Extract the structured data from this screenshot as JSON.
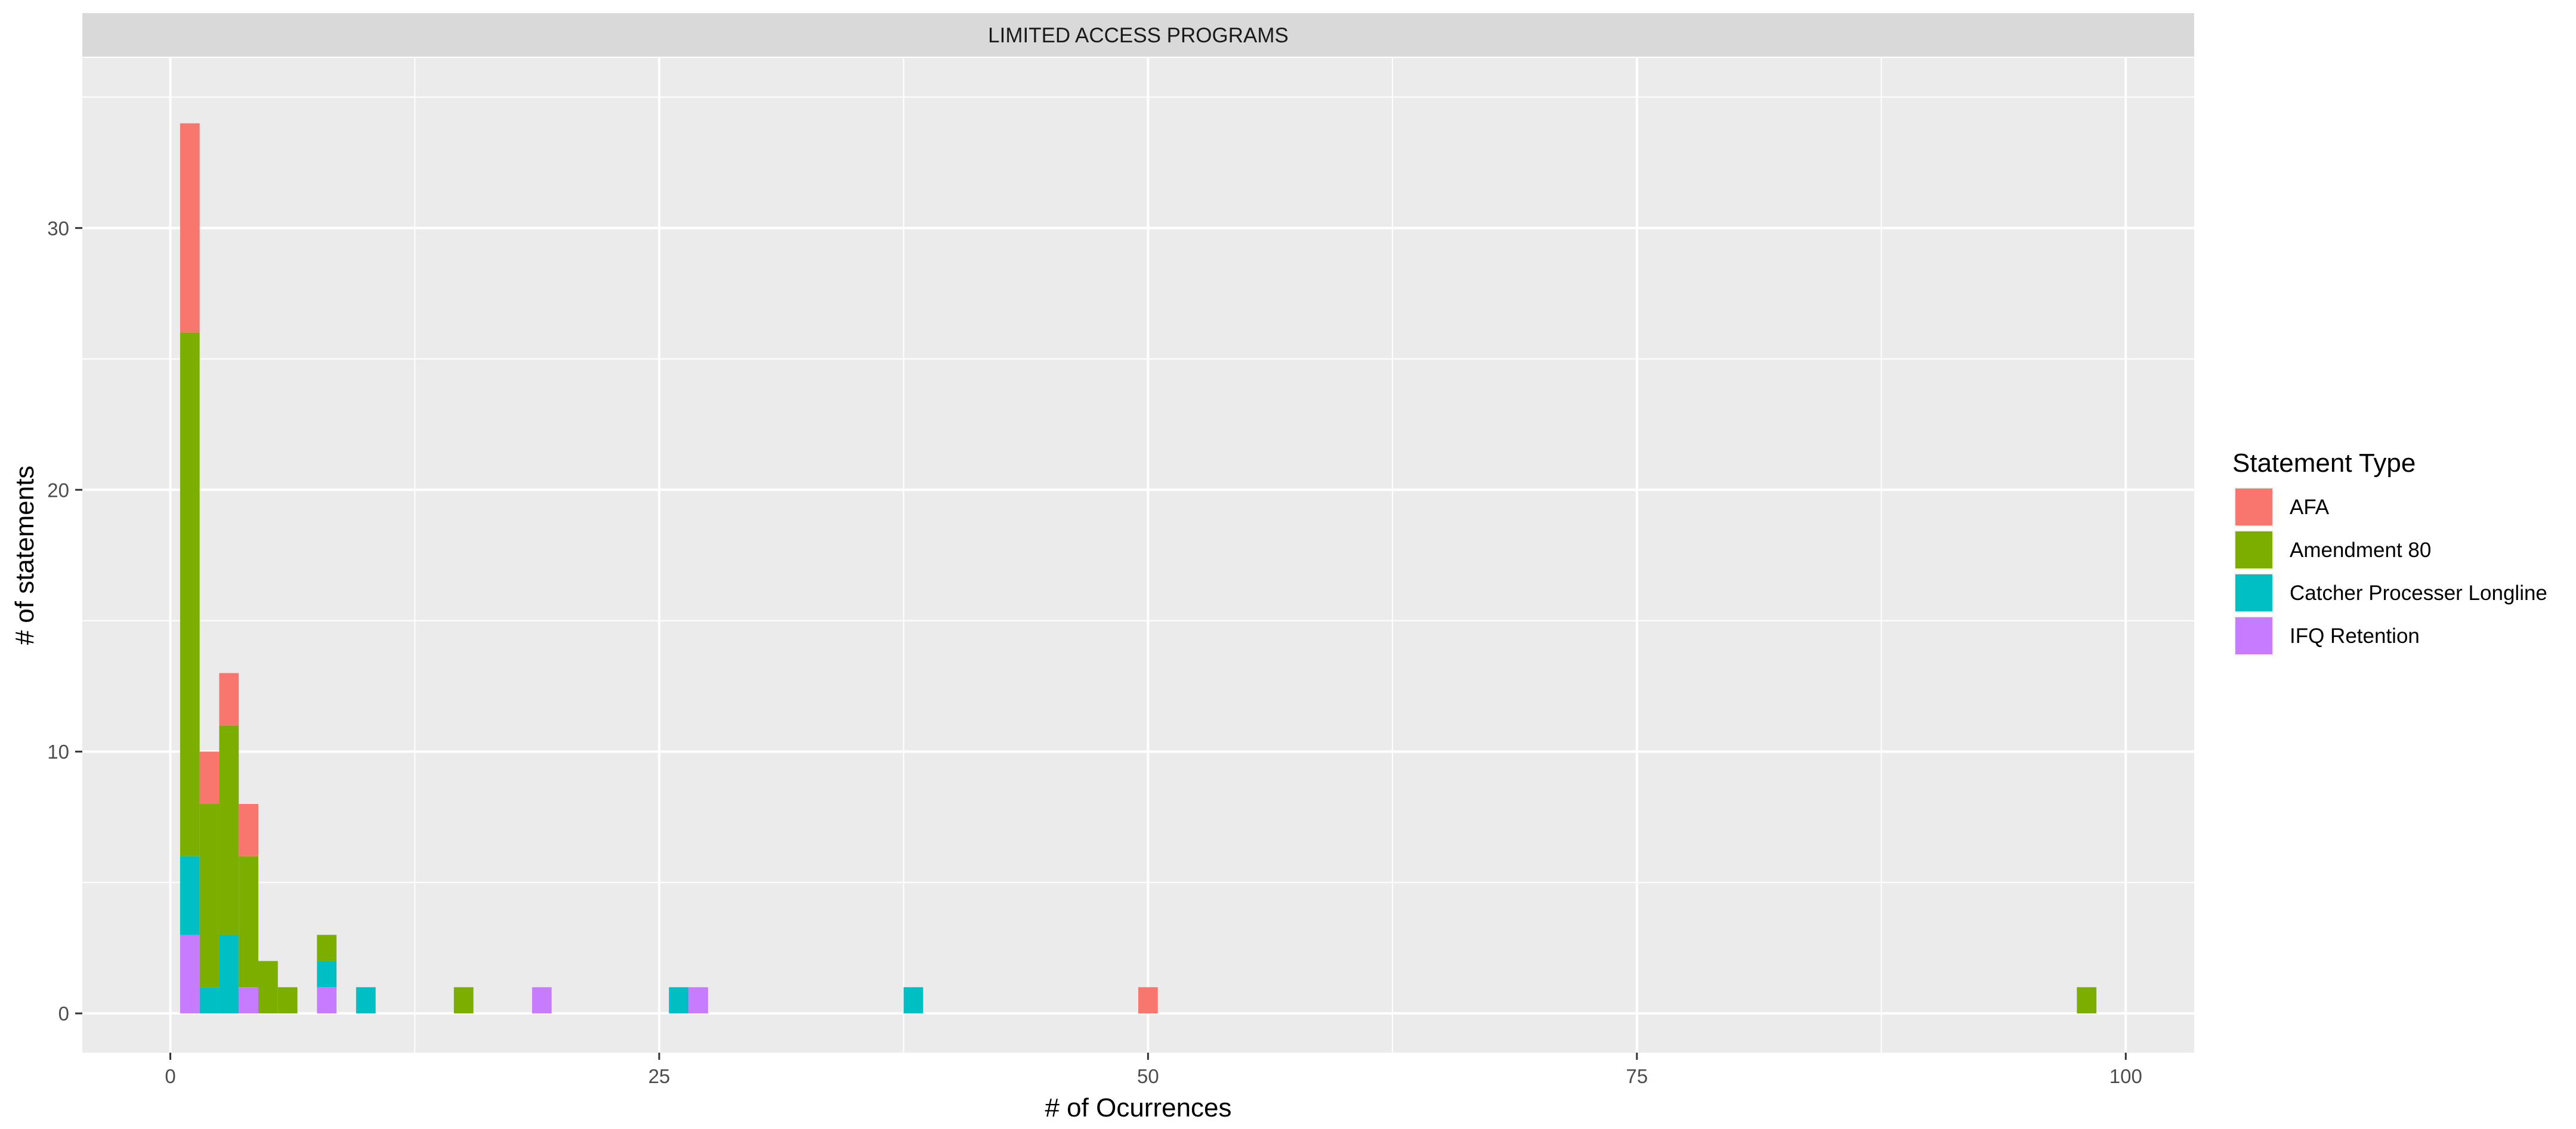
{
  "chart_data": {
    "type": "bar",
    "subtype": "stacked-histogram",
    "facet_title": "LIMITED ACCESS PROGRAMS",
    "xlabel": "# of Ocurrences",
    "ylabel": "# of statements",
    "xlim": [
      -4.5,
      103.5
    ],
    "ylim": [
      -1.5,
      36.5
    ],
    "x_ticks": [
      0,
      25,
      50,
      75,
      100
    ],
    "x_tick_labels": [
      "0",
      "25",
      "50",
      "75",
      "100"
    ],
    "y_ticks": [
      0,
      10,
      20,
      30
    ],
    "y_tick_labels": [
      "0",
      "10",
      "20",
      "30"
    ],
    "bin_width": 1,
    "legend": {
      "title": "Statement Type",
      "position": "right",
      "entries": [
        "AFA",
        "Amendment 80",
        "Catcher Processer Longline",
        "IFQ Retention"
      ]
    },
    "colors": {
      "AFA": "#F8766D",
      "Amendment 80": "#7CAE00",
      "Catcher Processer Longline": "#00BFC4",
      "IFQ Retention": "#C77CFF"
    },
    "stack_order": [
      "IFQ Retention",
      "Catcher Processer Longline",
      "Amendment 80",
      "AFA"
    ],
    "x": [
      1,
      2,
      3,
      4,
      5,
      6,
      8,
      10,
      15,
      19,
      26,
      27,
      38,
      50,
      98
    ],
    "series": [
      {
        "name": "AFA",
        "values": [
          8,
          2,
          2,
          2,
          0,
          0,
          0,
          0,
          0,
          0,
          0,
          0,
          0,
          1,
          0
        ]
      },
      {
        "name": "Amendment 80",
        "values": [
          20,
          7,
          8,
          5,
          2,
          1,
          1,
          0,
          1,
          0,
          0,
          0,
          0,
          0,
          1
        ]
      },
      {
        "name": "Catcher Processer Longline",
        "values": [
          3,
          1,
          3,
          0,
          0,
          0,
          1,
          1,
          0,
          0,
          1,
          0,
          1,
          0,
          0
        ]
      },
      {
        "name": "IFQ Retention",
        "values": [
          3,
          0,
          0,
          1,
          0,
          0,
          1,
          0,
          0,
          1,
          0,
          1,
          0,
          0,
          0
        ]
      }
    ]
  }
}
